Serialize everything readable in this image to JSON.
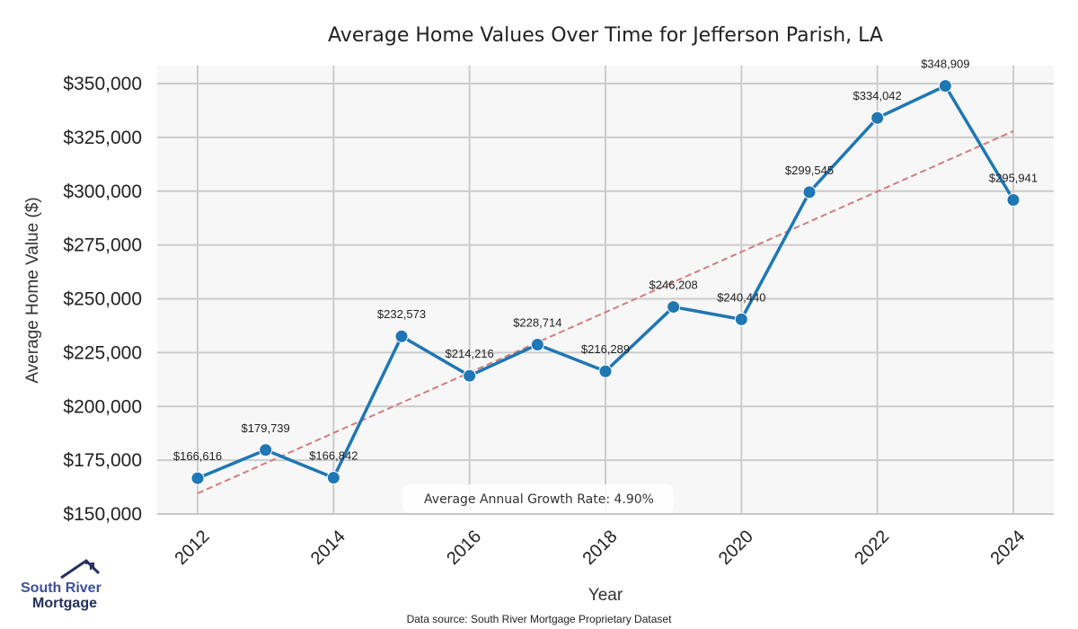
{
  "chart_data": {
    "type": "line",
    "title": "Average Home Values Over Time for Jefferson Parish, LA",
    "xlabel": "Year",
    "ylabel": "Average Home Value ($)",
    "xlim": [
      2011.4,
      2024.6
    ],
    "ylim": [
      145000,
      360000
    ],
    "x_ticks": [
      2012,
      2014,
      2016,
      2018,
      2020,
      2022,
      2024
    ],
    "y_ticks": [
      150000,
      175000,
      200000,
      225000,
      250000,
      275000,
      300000,
      325000,
      350000
    ],
    "y_tick_labels": [
      "$150,000",
      "$175,000",
      "$200,000",
      "$225,000",
      "$250,000",
      "$275,000",
      "$300,000",
      "$325,000",
      "$350,000"
    ],
    "x_tick_labels": [
      "2012",
      "2014",
      "2016",
      "2018",
      "2020",
      "2022",
      "2024"
    ],
    "grid": true,
    "series": [
      {
        "name": "Average Home Value",
        "color": "#1f77b4",
        "x": [
          2012,
          2013,
          2014,
          2015,
          2016,
          2017,
          2018,
          2019,
          2020,
          2021,
          2022,
          2023,
          2024
        ],
        "values": [
          166616,
          179739,
          166842,
          232573,
          214216,
          228714,
          216289,
          246208,
          240440,
          299545,
          334042,
          348909,
          295941
        ],
        "labels": [
          "$166,616",
          "$179,739",
          "$166,842",
          "$232,573",
          "$214,216",
          "$228,714",
          "$216,289",
          "$246,208",
          "$240,440",
          "$299,545",
          "$334,042",
          "$348,909",
          "$295,941"
        ]
      },
      {
        "name": "Trend",
        "color": "#d67b7b",
        "style": "dashed",
        "x": [
          2012,
          2024
        ],
        "values": [
          159600,
          327900
        ]
      }
    ],
    "annotation": "Average Annual Growth Rate: 4.90%",
    "source": "Data source: South River Mortgage Proprietary Dataset"
  },
  "logo": {
    "line1": "South River",
    "line2": "Mortgage"
  },
  "colors": {
    "plot_bg": "#f7f7f7",
    "grid": "#cccccc",
    "line": "#1f77b4",
    "trend": "#d67b7b"
  }
}
